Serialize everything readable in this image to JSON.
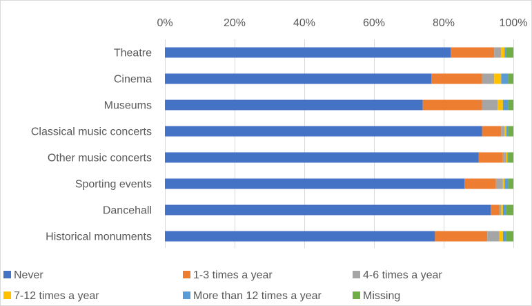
{
  "chart_data": {
    "type": "bar",
    "orientation": "horizontal",
    "stacked": "percent",
    "categories": [
      "Theatre",
      "Cinema",
      "Museums",
      "Classical music concerts",
      "Other music concerts",
      "Sporting events",
      "Dancehall",
      "Historical monuments"
    ],
    "series": [
      {
        "name": "Never",
        "color": "#4472C4",
        "values": [
          82,
          76.5,
          74,
          91,
          90,
          86,
          93.5,
          77.5
        ]
      },
      {
        "name": "1-3 times a year",
        "color": "#ED7D31",
        "values": [
          12.5,
          14.5,
          17,
          5.5,
          7,
          9,
          2.5,
          15
        ]
      },
      {
        "name": "4-6 times a year",
        "color": "#A5A5A5",
        "values": [
          2,
          3.5,
          4.5,
          1,
          1,
          2,
          0.5,
          3.5
        ]
      },
      {
        "name": "7-12 times a year",
        "color": "#FFC000",
        "values": [
          1,
          2,
          1.5,
          0.5,
          0.3,
          0.5,
          0.5,
          1
        ]
      },
      {
        "name": "More than 12 times a year",
        "color": "#5B9BD5",
        "values": [
          0.5,
          2,
          1.5,
          0.5,
          0.2,
          1,
          1,
          1
        ]
      },
      {
        "name": "Missing",
        "color": "#70AD47",
        "values": [
          2,
          1.5,
          1.5,
          1.5,
          1.5,
          1.5,
          2,
          2
        ]
      }
    ],
    "xlim": [
      0,
      100
    ],
    "x_ticks": [
      "0%",
      "20%",
      "40%",
      "60%",
      "80%",
      "100%"
    ],
    "x_tick_values": [
      0,
      20,
      40,
      60,
      80,
      100
    ],
    "x_axis_position": "top",
    "grid": true,
    "legend_position": "bottom"
  }
}
